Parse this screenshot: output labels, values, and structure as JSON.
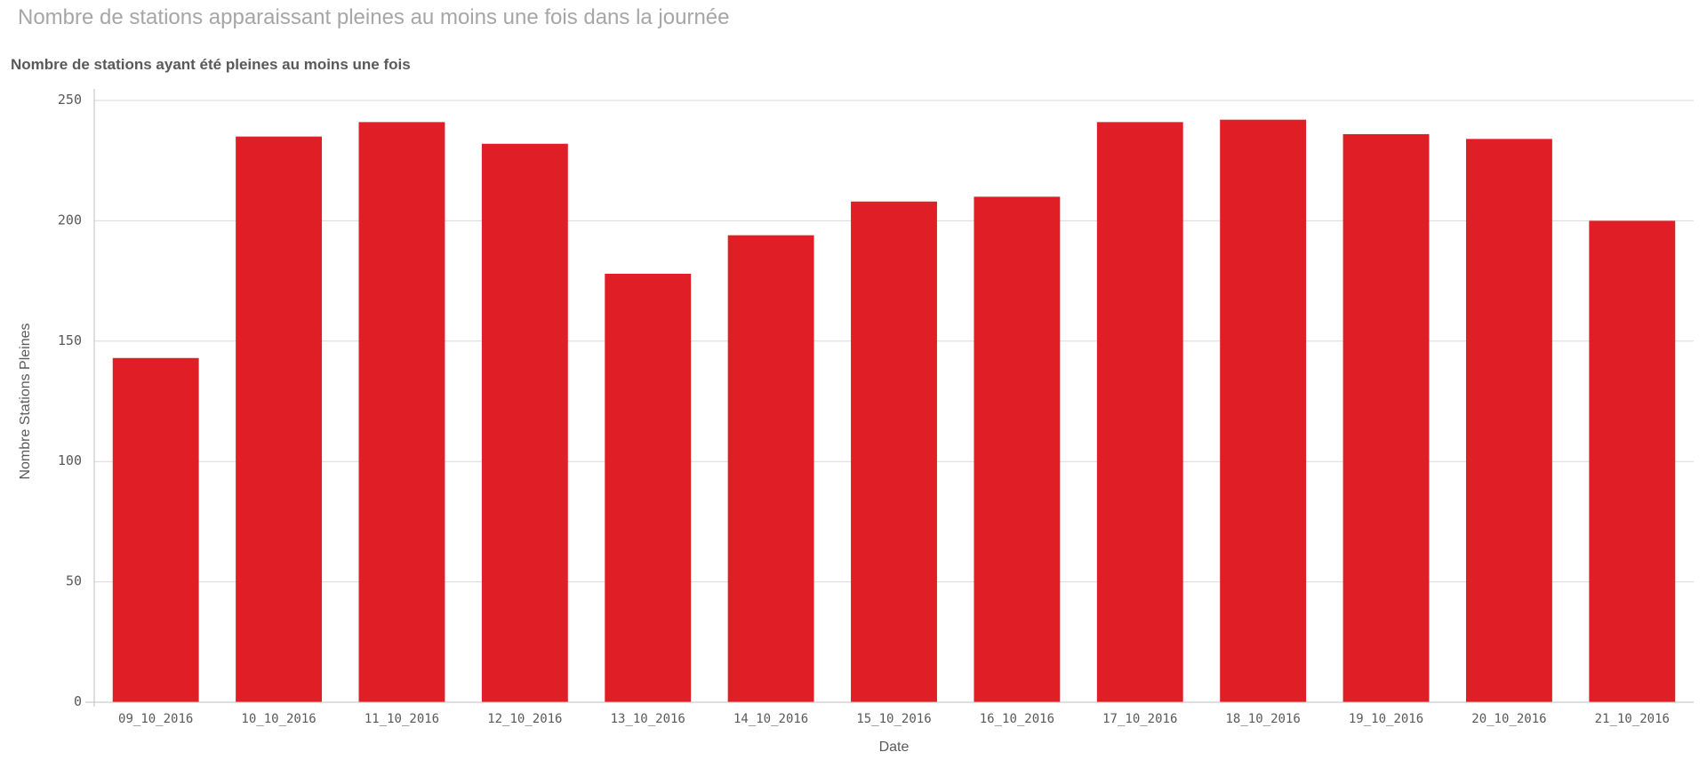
{
  "header": {
    "title": "Nombre de stations apparaissant pleines au moins une fois dans la journée"
  },
  "chart_data": {
    "type": "bar",
    "title": "Nombre de stations ayant été pleines au moins une fois",
    "xlabel": "Date",
    "ylabel": "Nombre Stations Pleines",
    "ylim": [
      0,
      250
    ],
    "yticks": [
      0,
      50,
      100,
      150,
      200,
      250
    ],
    "grid": true,
    "bar_color": "#e01e26",
    "categories": [
      "09_10_2016",
      "10_10_2016",
      "11_10_2016",
      "12_10_2016",
      "13_10_2016",
      "14_10_2016",
      "15_10_2016",
      "16_10_2016",
      "17_10_2016",
      "18_10_2016",
      "19_10_2016",
      "20_10_2016",
      "21_10_2016"
    ],
    "values": [
      143,
      235,
      241,
      232,
      178,
      194,
      208,
      210,
      241,
      242,
      236,
      234,
      200
    ]
  }
}
